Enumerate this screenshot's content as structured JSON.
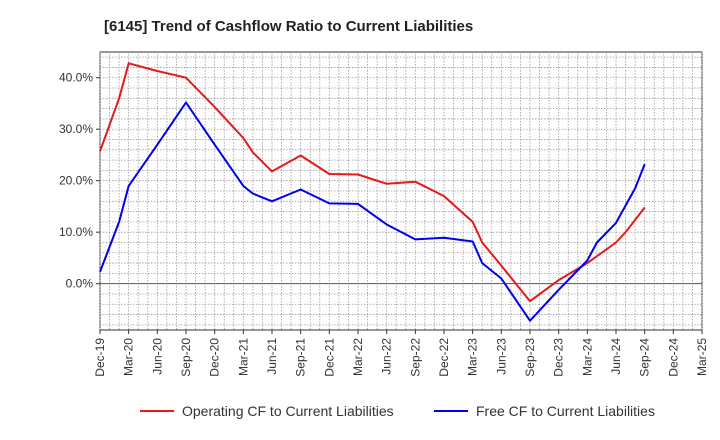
{
  "chart_data": {
    "type": "line",
    "title": "[6145]  Trend of Cashflow Ratio to Current Liabilities",
    "xlabel": "",
    "ylabel": "",
    "x_ticks": [
      "Dec-19",
      "Mar-20",
      "Jun-20",
      "Sep-20",
      "Dec-20",
      "Mar-21",
      "Jun-21",
      "Sep-21",
      "Dec-21",
      "Mar-22",
      "Jun-22",
      "Sep-22",
      "Dec-22",
      "Mar-23",
      "Jun-23",
      "Sep-23",
      "Dec-23",
      "Mar-24",
      "Jun-24",
      "Sep-24",
      "Dec-24",
      "Mar-25"
    ],
    "y_ticks": [
      {
        "value": 0,
        "label": "0.0%"
      },
      {
        "value": 10,
        "label": "10.0%"
      },
      {
        "value": 20,
        "label": "20.0%"
      },
      {
        "value": 30,
        "label": "30.0%"
      },
      {
        "value": 40,
        "label": "40.0%"
      }
    ],
    "ylim": [
      -9,
      45
    ],
    "grid": true,
    "legend_position": "bottom",
    "series": [
      {
        "name": "Operating CF to Current Liabilities",
        "color": "#e41a1c",
        "points": [
          [
            "Dec-19",
            25.7
          ],
          [
            "Feb-20",
            36.0
          ],
          [
            "Mar-20",
            42.8
          ],
          [
            "Jun-20",
            41.3
          ],
          [
            "Sep-20",
            40.0
          ],
          [
            "Dec-20",
            34.3
          ],
          [
            "Mar-21",
            28.3
          ],
          [
            "Apr-21",
            25.5
          ],
          [
            "Jun-21",
            21.8
          ],
          [
            "Sep-21",
            24.9
          ],
          [
            "Dec-21",
            21.3
          ],
          [
            "Mar-22",
            21.2
          ],
          [
            "Jun-22",
            19.4
          ],
          [
            "Sep-22",
            19.8
          ],
          [
            "Dec-22",
            17.0
          ],
          [
            "Mar-23",
            12.0
          ],
          [
            "Apr-23",
            8.0
          ],
          [
            "Jun-23",
            3.5
          ],
          [
            "Sep-23",
            -3.4
          ],
          [
            "Dec-23",
            0.7
          ],
          [
            "Mar-24",
            4.0
          ],
          [
            "Jun-24",
            8.0
          ],
          [
            "Jul-24",
            10.0
          ],
          [
            "Sep-24",
            14.8
          ]
        ]
      },
      {
        "name": "Free CF to Current Liabilities",
        "color": "#0000ee",
        "points": [
          [
            "Dec-19",
            2.3
          ],
          [
            "Feb-20",
            12.0
          ],
          [
            "Mar-20",
            19.0
          ],
          [
            "Jun-20",
            27.0
          ],
          [
            "Sep-20",
            35.2
          ],
          [
            "Dec-20",
            27.0
          ],
          [
            "Mar-21",
            19.0
          ],
          [
            "Apr-21",
            17.5
          ],
          [
            "Jun-21",
            16.0
          ],
          [
            "Sep-21",
            18.3
          ],
          [
            "Dec-21",
            15.6
          ],
          [
            "Mar-22",
            15.5
          ],
          [
            "Jun-22",
            11.5
          ],
          [
            "Sep-22",
            8.6
          ],
          [
            "Dec-22",
            8.9
          ],
          [
            "Mar-23",
            8.2
          ],
          [
            "Apr-23",
            4.0
          ],
          [
            "Jun-23",
            1.0
          ],
          [
            "Sep-23",
            -7.2
          ],
          [
            "Dec-23",
            -1.2
          ],
          [
            "Mar-24",
            4.5
          ],
          [
            "Apr-24",
            8.0
          ],
          [
            "Jun-24",
            11.8
          ],
          [
            "Aug-24",
            18.5
          ],
          [
            "Sep-24",
            23.2
          ]
        ]
      }
    ]
  }
}
